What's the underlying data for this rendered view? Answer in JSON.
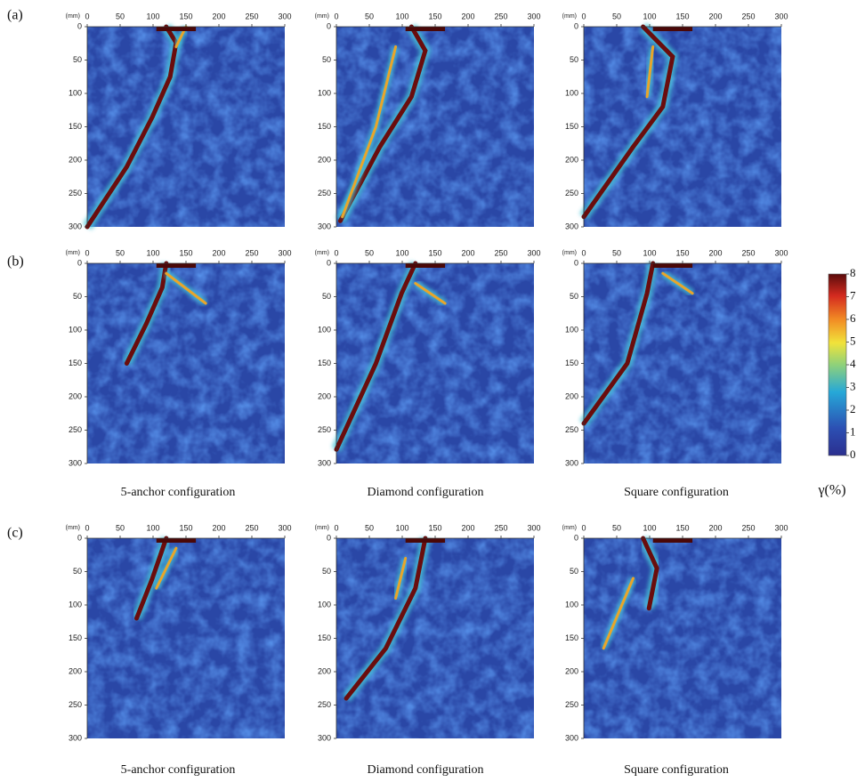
{
  "rows": [
    {
      "label": "(a)"
    },
    {
      "label": "(b)",
      "captions": [
        "5-anchor configuration",
        "Diamond configuration",
        "Square configuration"
      ]
    },
    {
      "label": "(c)",
      "captions": [
        "5-anchor configuration",
        "Diamond configuration",
        "Square configuration"
      ]
    }
  ],
  "axes": {
    "unit": "(mm)",
    "lim": [
      0,
      300
    ],
    "xticks": [
      0,
      50,
      100,
      150,
      200,
      250,
      300
    ],
    "yticks": [
      0,
      50,
      100,
      150,
      200,
      250,
      300
    ]
  },
  "colorbar": {
    "lim": [
      0,
      8
    ],
    "ticks": [
      0,
      1,
      2,
      3,
      4,
      5,
      6,
      7,
      8
    ],
    "label": "γ(%)"
  }
}
